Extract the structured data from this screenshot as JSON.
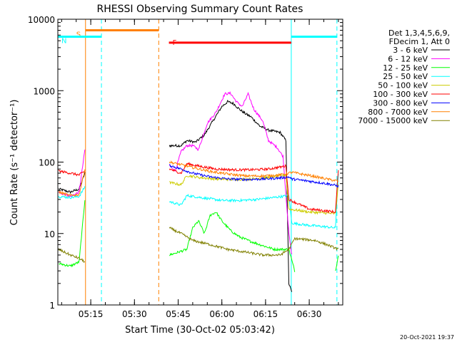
{
  "chart_data": {
    "type": "line",
    "title": "RHESSI Observing Summary Count Rates",
    "xlabel": "Start Time (30-Oct-02 05:03:42)",
    "ylabel": "Count Rate (s⁻¹ detector⁻¹)",
    "yscale": "log",
    "ylim": [
      1,
      10000
    ],
    "xlim": [
      "05:03:42",
      "06:41:30"
    ],
    "x_ticks": [
      "05:15",
      "05:30",
      "05:45",
      "06:00",
      "06:15",
      "06:30"
    ],
    "y_ticks": [
      "1",
      "10",
      "100",
      "1000",
      "10000"
    ],
    "legend_header": [
      "Det 1,3,4,5,6,9,",
      "FDecim 1, Att 0"
    ],
    "legend_position": "right",
    "footer_date": "20-Oct-2021 19:37",
    "state_bars": [
      {
        "label": "S",
        "color": "#ff8000",
        "start": "05:13:12",
        "end": "05:38:20",
        "level": 7000
      },
      {
        "label": "N",
        "color": "#00ffff",
        "start": "05:03:42",
        "end": "05:18:40",
        "level": 5700
      },
      {
        "label": "F",
        "color": "#ff0000",
        "start": "05:41:50",
        "end": "06:23:50",
        "level": 4700
      },
      {
        "label": "",
        "color": "#00ffff",
        "start": "06:23:50",
        "end": "06:39:30",
        "level": 5700
      }
    ],
    "vertical_markers": [
      {
        "time": "05:13:12",
        "color": "#ff8000",
        "style": "solid"
      },
      {
        "time": "05:18:40",
        "color": "#00ffff",
        "style": "dashed"
      },
      {
        "time": "05:38:20",
        "color": "#ff8000",
        "style": "dashed"
      },
      {
        "time": "06:23:50",
        "color": "#00ffff",
        "style": "solid"
      },
      {
        "time": "06:39:30",
        "color": "#00ffff",
        "style": "dashed"
      }
    ],
    "series": [
      {
        "name": "3 - 6 keV",
        "color": "#000000",
        "points": [
          [
            "05:04",
            42
          ],
          [
            "05:08",
            38
          ],
          [
            "05:11",
            42
          ],
          [
            "05:13",
            70
          ],
          [
            "05:42",
            170
          ],
          [
            "05:46",
            170
          ],
          [
            "05:48",
            200
          ],
          [
            "05:51",
            190
          ],
          [
            "05:54",
            240
          ],
          [
            "05:57",
            380
          ],
          [
            "06:00",
            600
          ],
          [
            "06:02",
            700
          ],
          [
            "06:04",
            660
          ],
          [
            "06:06",
            550
          ],
          [
            "06:08",
            480
          ],
          [
            "06:10",
            430
          ],
          [
            "06:13",
            320
          ],
          [
            "06:16",
            280
          ],
          [
            "06:20",
            260
          ],
          [
            "06:22",
            200
          ],
          [
            "06:23",
            2
          ],
          [
            "06:24",
            1.5
          ]
        ]
      },
      {
        "name": "6 - 12 keV",
        "color": "#ff00ff",
        "points": [
          [
            "05:04",
            38
          ],
          [
            "05:08",
            33
          ],
          [
            "05:11",
            38
          ],
          [
            "05:13",
            150
          ],
          [
            "05:42",
            90
          ],
          [
            "05:44",
            75
          ],
          [
            "05:46",
            140
          ],
          [
            "05:48",
            170
          ],
          [
            "05:50",
            170
          ],
          [
            "05:52",
            150
          ],
          [
            "05:55",
            350
          ],
          [
            "05:58",
            500
          ],
          [
            "06:01",
            900
          ],
          [
            "06:03",
            920
          ],
          [
            "06:05",
            700
          ],
          [
            "06:07",
            600
          ],
          [
            "06:09",
            900
          ],
          [
            "06:11",
            550
          ],
          [
            "06:14",
            380
          ],
          [
            "06:16",
            200
          ],
          [
            "06:19",
            160
          ],
          [
            "06:21",
            120
          ],
          [
            "06:23",
            10
          ],
          [
            "06:24",
            5
          ]
        ]
      },
      {
        "name": "12 - 25 keV",
        "color": "#00ff00",
        "points": [
          [
            "05:04",
            3.8
          ],
          [
            "05:08",
            3.5
          ],
          [
            "05:11",
            4
          ],
          [
            "05:13",
            30
          ],
          [
            "05:42",
            5
          ],
          [
            "05:48",
            6
          ],
          [
            "05:50",
            12
          ],
          [
            "05:52",
            15
          ],
          [
            "05:54",
            10
          ],
          [
            "05:56",
            18
          ],
          [
            "05:58",
            20
          ],
          [
            "06:00",
            15
          ],
          [
            "06:03",
            11
          ],
          [
            "06:06",
            9
          ],
          [
            "06:09",
            8
          ],
          [
            "06:13",
            7
          ],
          [
            "06:18",
            6
          ],
          [
            "06:23",
            6
          ],
          [
            "06:25",
            3
          ],
          [
            "06:39",
            3
          ],
          [
            "06:40",
            5
          ]
        ]
      },
      {
        "name": "25 - 50 keV",
        "color": "#00ffff",
        "points": [
          [
            "05:04",
            33
          ],
          [
            "05:08",
            32
          ],
          [
            "05:11",
            33
          ],
          [
            "05:13",
            45
          ],
          [
            "05:42",
            28
          ],
          [
            "05:46",
            25
          ],
          [
            "05:48",
            34
          ],
          [
            "05:55",
            31
          ],
          [
            "06:00",
            29
          ],
          [
            "06:06",
            29
          ],
          [
            "06:12",
            30
          ],
          [
            "06:18",
            32
          ],
          [
            "06:23",
            34
          ],
          [
            "06:24",
            14
          ],
          [
            "06:30",
            13
          ],
          [
            "06:35",
            12.5
          ],
          [
            "06:39",
            12
          ],
          [
            "06:40",
            70
          ]
        ]
      },
      {
        "name": "50 - 100 keV",
        "color": "#cccc00",
        "points": [
          [
            "05:42",
            52
          ],
          [
            "05:46",
            48
          ],
          [
            "05:48",
            65
          ],
          [
            "05:52",
            61
          ],
          [
            "05:58",
            58
          ],
          [
            "06:04",
            57
          ],
          [
            "06:10",
            58
          ],
          [
            "06:16",
            61
          ],
          [
            "06:22",
            66
          ],
          [
            "06:23",
            22
          ],
          [
            "06:30",
            20
          ],
          [
            "06:39",
            19
          ],
          [
            "06:40",
            50
          ]
        ]
      },
      {
        "name": "100 - 300 keV",
        "color": "#ff0000",
        "points": [
          [
            "05:04",
            75
          ],
          [
            "05:08",
            70
          ],
          [
            "05:11",
            66
          ],
          [
            "05:13",
            75
          ],
          [
            "05:42",
            80
          ],
          [
            "05:46",
            70
          ],
          [
            "05:48",
            95
          ],
          [
            "05:52",
            88
          ],
          [
            "05:58",
            80
          ],
          [
            "06:04",
            78
          ],
          [
            "06:10",
            78
          ],
          [
            "06:16",
            80
          ],
          [
            "06:22",
            88
          ],
          [
            "06:23",
            30
          ],
          [
            "06:30",
            22
          ],
          [
            "06:39",
            20
          ],
          [
            "06:40",
            80
          ]
        ]
      },
      {
        "name": "300 - 800 keV",
        "color": "#0000ff",
        "points": [
          [
            "05:42",
            90
          ],
          [
            "05:46",
            80
          ],
          [
            "05:50",
            70
          ],
          [
            "05:56",
            62
          ],
          [
            "06:02",
            58
          ],
          [
            "06:08",
            57
          ],
          [
            "06:14",
            58
          ],
          [
            "06:20",
            60
          ],
          [
            "06:23",
            62
          ],
          [
            "06:24",
            58
          ],
          [
            "06:30",
            54
          ],
          [
            "06:36",
            50
          ],
          [
            "06:40",
            46
          ]
        ]
      },
      {
        "name": "800 - 7000 keV",
        "color": "#ff8000",
        "points": [
          [
            "05:04",
            38
          ],
          [
            "05:08",
            34
          ],
          [
            "05:11",
            35
          ],
          [
            "05:13",
            80
          ],
          [
            "05:42",
            100
          ],
          [
            "05:46",
            92
          ],
          [
            "05:50",
            84
          ],
          [
            "05:56",
            74
          ],
          [
            "06:02",
            68
          ],
          [
            "06:08",
            64
          ],
          [
            "06:14",
            64
          ],
          [
            "06:20",
            66
          ],
          [
            "06:23",
            70
          ],
          [
            "06:24",
            72
          ],
          [
            "06:30",
            65
          ],
          [
            "06:36",
            58
          ],
          [
            "06:40",
            54
          ]
        ]
      },
      {
        "name": "7000 - 15000 keV",
        "color": "#808000",
        "points": [
          [
            "05:04",
            6
          ],
          [
            "05:08",
            5
          ],
          [
            "05:11",
            4.5
          ],
          [
            "05:13",
            4
          ],
          [
            "05:42",
            12
          ],
          [
            "05:46",
            10
          ],
          [
            "05:50",
            8
          ],
          [
            "05:56",
            7
          ],
          [
            "06:02",
            6
          ],
          [
            "06:08",
            5.5
          ],
          [
            "06:14",
            5
          ],
          [
            "06:20",
            5
          ],
          [
            "06:23",
            6
          ],
          [
            "06:25",
            8.5
          ],
          [
            "06:32",
            8
          ],
          [
            "06:36",
            7
          ],
          [
            "06:40",
            6
          ]
        ]
      }
    ]
  }
}
